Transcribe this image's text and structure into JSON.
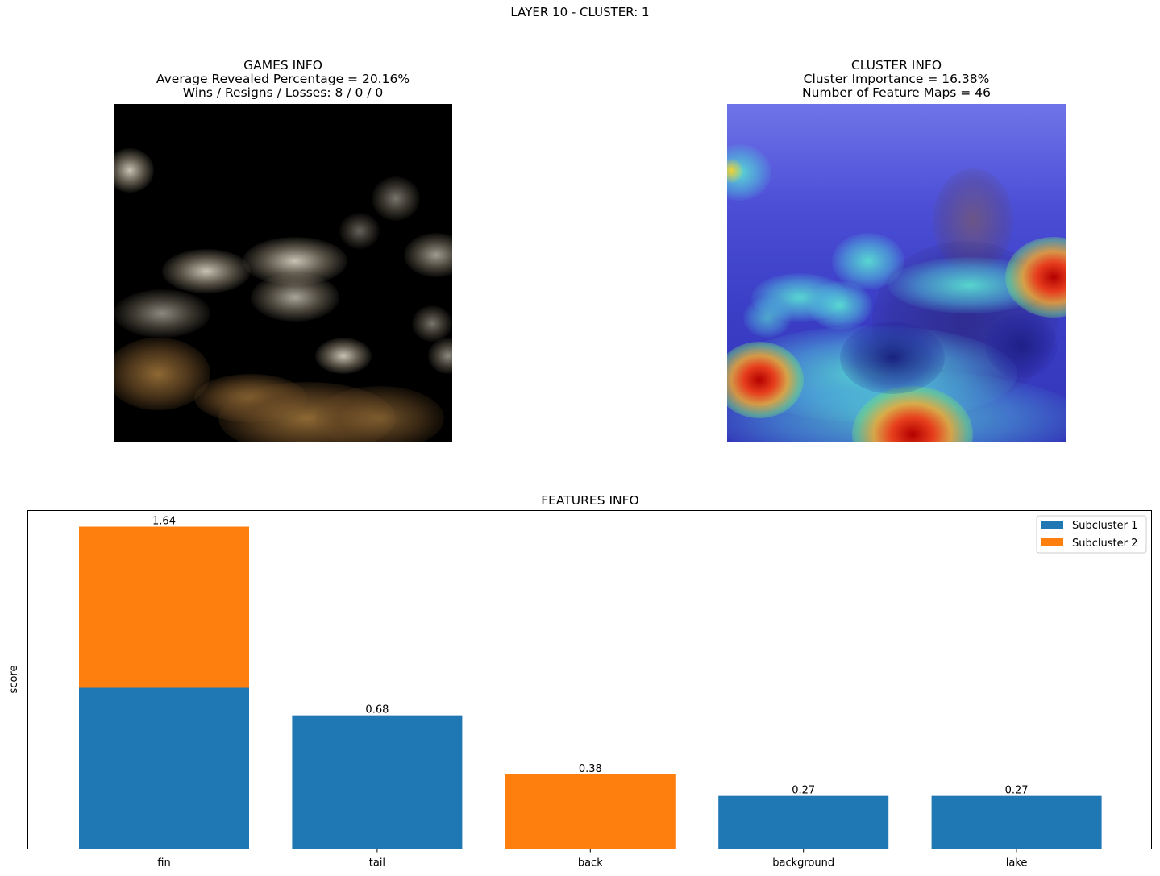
{
  "suptitle": "LAYER 10 - CLUSTER: 1",
  "games_panel": {
    "title": "GAMES INFO",
    "line1": "Average Revealed Percentage = 20.16%",
    "line2": "Wins / Resigns / Losses: 8 / 0 / 0"
  },
  "cluster_panel": {
    "title": "CLUSTER INFO",
    "line1": "Cluster Importance = 16.38%",
    "line2": "Number of Feature Maps = 46"
  },
  "colors": {
    "subcluster_1": "#1f77b4",
    "subcluster_2": "#ff7f0e"
  },
  "chart_data": {
    "type": "bar",
    "stacked": true,
    "title": "FEATURES INFO",
    "xlabel": "",
    "ylabel": "score",
    "categories": [
      "fin",
      "tail",
      "back",
      "background",
      "lake"
    ],
    "series": [
      {
        "name": "Subcluster 1",
        "values": [
          0.82,
          0.68,
          0,
          0.27,
          0.27
        ]
      },
      {
        "name": "Subcluster 2",
        "values": [
          0.82,
          0,
          0.38,
          0,
          0
        ]
      }
    ],
    "totals": [
      "1.64",
      "0.68",
      "0.38",
      "0.27",
      "0.27"
    ],
    "ylim": [
      0,
      1.722
    ],
    "yticks_visible": false,
    "legend": "top-right"
  }
}
